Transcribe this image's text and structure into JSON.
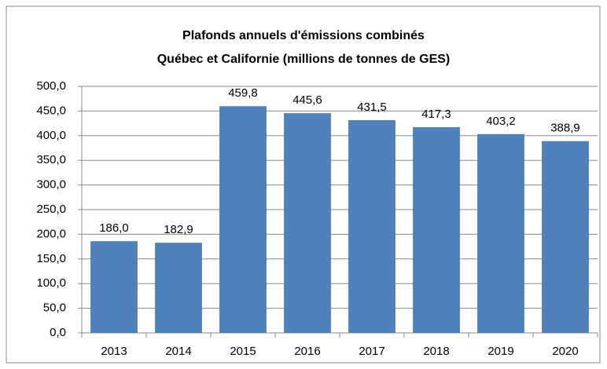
{
  "chart_data": {
    "type": "bar",
    "title": [
      "Plafonds annuels d'émissions combinés",
      "Québec et Californie (millions de tonnes de GES)"
    ],
    "categories": [
      "2013",
      "2014",
      "2015",
      "2016",
      "2017",
      "2018",
      "2019",
      "2020"
    ],
    "values": [
      186.0,
      182.9,
      459.8,
      445.6,
      431.5,
      417.3,
      403.2,
      388.9
    ],
    "value_labels": [
      "186,0",
      "182,9",
      "459,8",
      "445,6",
      "431,5",
      "417,3",
      "403,2",
      "388,9"
    ],
    "color": "#4f81bd",
    "ylim": [
      0,
      500
    ],
    "yticks": [
      {
        "value": 0,
        "label": "0,0"
      },
      {
        "value": 50,
        "label": "50,0"
      },
      {
        "value": 100,
        "label": "100,0"
      },
      {
        "value": 150,
        "label": "150,0"
      },
      {
        "value": 200,
        "label": "200,0"
      },
      {
        "value": 250,
        "label": "250,0"
      },
      {
        "value": 300,
        "label": "300,0"
      },
      {
        "value": 350,
        "label": "350,0"
      },
      {
        "value": 400,
        "label": "400,0"
      },
      {
        "value": 450,
        "label": "450,0"
      },
      {
        "value": 500,
        "label": "500,0"
      }
    ],
    "grid": true
  }
}
